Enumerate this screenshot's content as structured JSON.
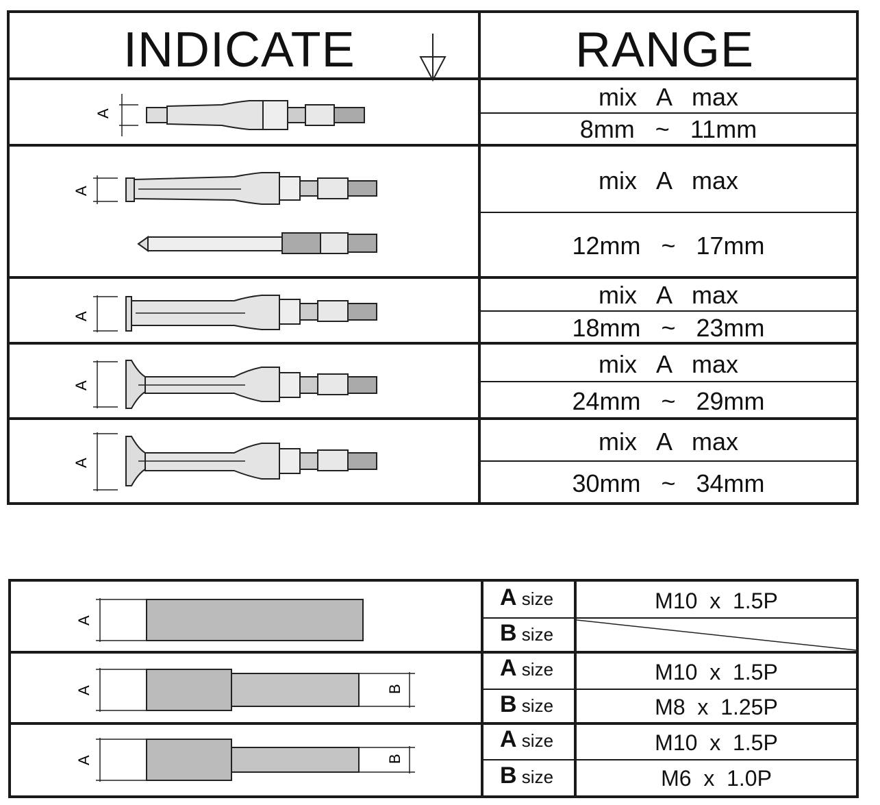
{
  "range_table": {
    "header": {
      "indicate": "INDICATE",
      "range": "RANGE"
    },
    "dimension_letter": "A",
    "rows": [
      {
        "label": "mix   A   max",
        "range": "8mm   ~   11mm"
      },
      {
        "label": "mix   A   max",
        "range": "12mm   ~   17mm"
      },
      {
        "label": "mix   A   max",
        "range": "18mm   ~   23mm"
      },
      {
        "label": "mix   A   max",
        "range": "24mm   ~   29mm"
      },
      {
        "label": "mix   A   max",
        "range": "30mm   ~   34mm"
      }
    ]
  },
  "thread_table": {
    "size_a_letter": "A",
    "size_b_letter": "B",
    "size_word": "size",
    "rows": [
      {
        "a_value": "M10  x  1.5P",
        "b_value": ""
      },
      {
        "a_value": "M10  x  1.5P",
        "b_value": "M8  x  1.25P"
      },
      {
        "a_value": "M10  x  1.5P",
        "b_value": "M6  x  1.0P"
      }
    ]
  }
}
